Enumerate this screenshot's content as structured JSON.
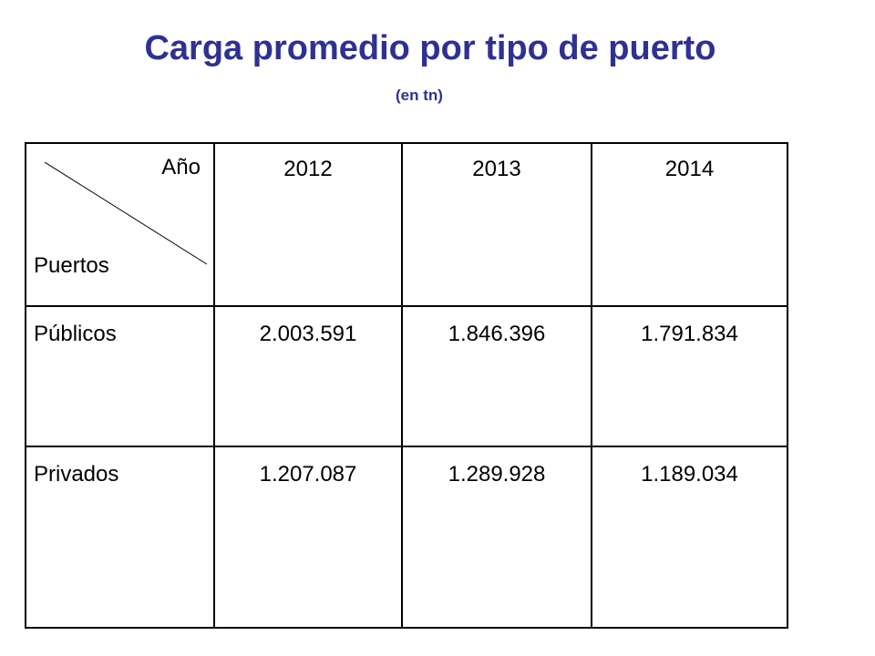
{
  "title": "Carga promedio por tipo de puerto",
  "subtitle": "(en tn)",
  "table": {
    "corner_top": "Año",
    "corner_bottom": "Puertos",
    "years": [
      "2012",
      "2013",
      "2014"
    ],
    "rows": [
      {
        "label": "Públicos",
        "values": [
          "2.003.591",
          "1.846.396",
          "1.791.834"
        ]
      },
      {
        "label": "Privados",
        "values": [
          "1.207.087",
          "1.289.928",
          "1.189.034"
        ]
      }
    ]
  },
  "colors": {
    "title": "#2e3192",
    "text": "#000000",
    "border": "#000000"
  }
}
